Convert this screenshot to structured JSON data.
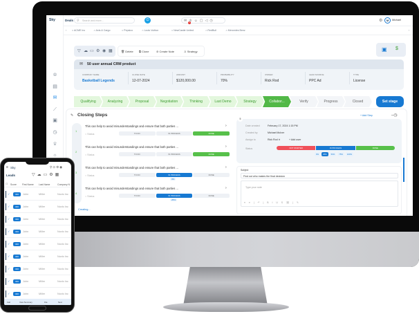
{
  "app": {
    "logo": "Sky",
    "page_title": "Deals",
    "search_placeholder": "Search and more...",
    "user": "Michael",
    "user_initial": "M",
    "notification_count": "1"
  },
  "sidebar": {
    "icons": [
      "deals-icon",
      "documents-icon",
      "handshake-icon",
      "chart-icon",
      "calendar-icon",
      "clock-icon",
      "trophy-icon",
      "bulb-icon",
      "settings-icon"
    ]
  },
  "tabs": [
    "ACME Inc",
    "Axis & Cargo",
    "Pepsico",
    "Louis Vuitton",
    "NewCastle United",
    "RedBull",
    "Mercedes Benz"
  ],
  "toolbar": {
    "actions": [
      "Delete",
      "Clone",
      "Create Note",
      "Strategy"
    ]
  },
  "deal": {
    "title": "50 user annual CRM product",
    "fields": [
      {
        "label": "Company Name",
        "value": "Basketball Legends"
      },
      {
        "label": "Close Date",
        "value": "12-07-2024"
      },
      {
        "label": "Amount",
        "value": "$120,000.00"
      },
      {
        "label": "Probability",
        "value": "70%"
      },
      {
        "label": "Owner",
        "value": "Rick Rod"
      },
      {
        "label": "Lead Source",
        "value": "PPC Ad"
      },
      {
        "label": "Type",
        "value": "License"
      }
    ]
  },
  "stages": {
    "items": [
      "Qualifying",
      "Analyzing",
      "Proposal",
      "Negotiation",
      "Thinking",
      "Last Demo",
      "Strategy",
      "Collabor...",
      "Verify",
      "Progress",
      "Closed"
    ],
    "current_index": 7,
    "set_stage_label": "Set stage"
  },
  "closing_steps": {
    "title": "Closing Steps",
    "add_step": "Add Step",
    "creating": "Creating...",
    "status_label": "Status",
    "status_options": [
      "TO DO",
      "IN PROCESS",
      "DONE"
    ],
    "steps": [
      {
        "number": "1",
        "text": "This can help to avoid misunderstandings and ensure that both parties ...",
        "status": "DONE",
        "progress": ""
      },
      {
        "number": "2",
        "text": "This can help to avoid misunderstandings and ensure that both parties ...",
        "status": "DONE",
        "progress": ""
      },
      {
        "number": "3",
        "text": "This can help to avoid misunderstandings and ensure that both parties ...",
        "status": "IN PROCESS",
        "progress": "0%"
      },
      {
        "number": "4",
        "text": "This can help to avoid misunderstandings and ensure that both parties ...",
        "status": "IN PROCESS",
        "progress": "25%"
      }
    ]
  },
  "step_detail": {
    "number": "5",
    "date_created_label": "Date created",
    "date_created": "February 17, 2024 1:15 PM",
    "created_by_label": "Created by",
    "created_by": "Michael McIver",
    "assign_label": "Assign to",
    "assignee": "Rick Rod",
    "add_user": "Add user",
    "status_label": "Status",
    "status_options": [
      "NOT STARTED",
      "IN PROCESS",
      "DONE"
    ],
    "status": "IN PROCESS",
    "progress_options": [
      "0%",
      "25%",
      "50%",
      "75%",
      "100%"
    ],
    "progress": "25%",
    "subject_label": "Subject",
    "subject": "Find out who makes the final decision",
    "note_placeholder": "Type your note"
  },
  "phone": {
    "logo": "Sky",
    "title": "Leads",
    "columns": [
      "Score",
      "First Name",
      "Last Name",
      "Company N"
    ],
    "rows": [
      {
        "score": "300",
        "first": "John",
        "last": "Miller",
        "company": "Novlo Inc"
      },
      {
        "score": "300",
        "first": "John",
        "last": "Miller",
        "company": "Novlo Inc"
      },
      {
        "score": "300",
        "first": "John",
        "last": "Miller",
        "company": "Novlo Inc"
      },
      {
        "score": "300",
        "first": "John",
        "last": "Miller",
        "company": "Novlo Inc"
      },
      {
        "score": "300",
        "first": "John",
        "last": "Miller",
        "company": "Novlo Inc"
      },
      {
        "score": "300",
        "first": "John",
        "last": "Miller",
        "company": "Novlo Inc"
      },
      {
        "score": "300",
        "first": "John",
        "last": "Miller",
        "company": "Novlo Inc"
      },
      {
        "score": "300",
        "first": "John",
        "last": "Miller",
        "company": "Novlo Inc"
      },
      {
        "score": "300",
        "first": "John",
        "last": "Miller",
        "company": "Novlo Inc"
      }
    ],
    "bottom_bar": [
      "Call",
      "View Summary",
      "File",
      "Next"
    ]
  },
  "colors": {
    "accent": "#1779d2",
    "done": "#57c04a",
    "not_started": "#f0505a",
    "stage_done_bg": "#e3f7dd"
  }
}
